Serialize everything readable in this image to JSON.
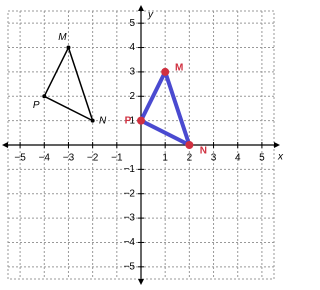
{
  "chart_data": {
    "type": "polygon",
    "xlabel": "x",
    "ylabel": "y",
    "xlim": [
      -5.5,
      5.5
    ],
    "ylim": [
      -5.5,
      5.5
    ],
    "xticks": [
      {
        "value": -5,
        "label": "−5"
      },
      {
        "value": -4,
        "label": "−4"
      },
      {
        "value": -3,
        "label": "−3"
      },
      {
        "value": -2,
        "label": "−2"
      },
      {
        "value": -1,
        "label": "−1"
      },
      1,
      2,
      3,
      4,
      5
    ],
    "yticks": [
      {
        "value": -5,
        "label": "−5"
      },
      {
        "value": -4,
        "label": "−4"
      },
      {
        "value": -3,
        "label": "−3"
      },
      {
        "value": -2,
        "label": "−2"
      },
      {
        "value": -1,
        "label": "−1"
      },
      1,
      2,
      3,
      4,
      5
    ],
    "grid": true,
    "shapes": [
      {
        "color": "#000000",
        "labels": [
          "M",
          "N",
          "P"
        ],
        "x": [
          -3,
          -2,
          -4
        ],
        "y": [
          4,
          1,
          2
        ]
      },
      {
        "color": "#4a4ad0",
        "label_color": "#d03040",
        "labels": [
          "M",
          "N",
          "P"
        ],
        "x": [
          1,
          2,
          0
        ],
        "y": [
          3,
          0,
          1
        ]
      }
    ]
  }
}
